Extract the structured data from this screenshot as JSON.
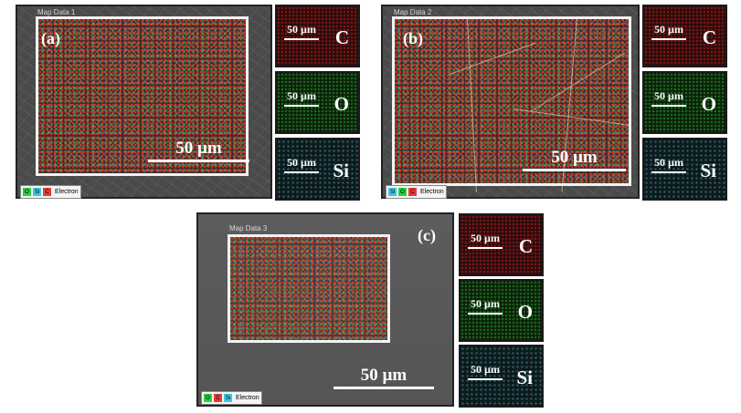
{
  "panels": {
    "a": {
      "map_title": "Map Data 1",
      "panel_label": "(a)",
      "scale_bar": "50 µm",
      "legend": {
        "chips": [
          "O",
          "Si",
          "C"
        ],
        "label": "Electron"
      },
      "tiles": [
        {
          "element": "C",
          "scale": "50 µm"
        },
        {
          "element": "O",
          "scale": "50 µm"
        },
        {
          "element": "Si",
          "scale": "50 µm"
        }
      ]
    },
    "b": {
      "map_title": "Map Data 2",
      "panel_label": "(b)",
      "scale_bar": "50 µm",
      "legend": {
        "chips": [
          "Si",
          "O",
          "C"
        ],
        "label": "Electron"
      },
      "tiles": [
        {
          "element": "C",
          "scale": "50 µm"
        },
        {
          "element": "O",
          "scale": "50 µm"
        },
        {
          "element": "Si",
          "scale": "50 µm"
        }
      ]
    },
    "c": {
      "map_title": "Map Data 3",
      "panel_label": "(c)",
      "scale_bar": "50 µm",
      "legend": {
        "chips": [
          "O",
          "C",
          "Si"
        ],
        "label": "Electron"
      },
      "tiles": [
        {
          "element": "C",
          "scale": "50 µm"
        },
        {
          "element": "O",
          "scale": "50 µm"
        },
        {
          "element": "Si",
          "scale": "50 µm"
        }
      ]
    }
  },
  "colors": {
    "C": "#e23b3b",
    "O": "#2ecc40",
    "Si": "#3fc6e0"
  }
}
